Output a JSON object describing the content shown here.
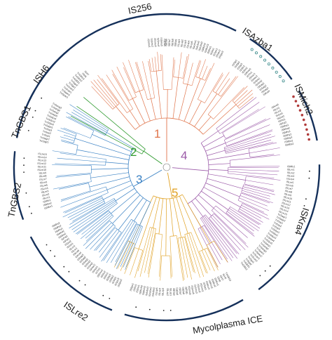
{
  "families": [
    {
      "label": "IS256"
    },
    {
      "label": "ISAzba1"
    },
    {
      "label": "ISMich2"
    },
    {
      "label": "ISKra4"
    },
    {
      "label": "Mycolplasma ICE"
    },
    {
      "label": "ISLre2"
    },
    {
      "label": "TnGBS2"
    },
    {
      "label": "TnGBS1"
    },
    {
      "label": "ISH6"
    }
  ],
  "clades": [
    {
      "number": "1",
      "color": "#e0744a"
    },
    {
      "number": "2",
      "color": "#2e9a2e"
    },
    {
      "number": "3",
      "color": "#3b82c4"
    },
    {
      "number": "4",
      "color": "#9b5aa8"
    },
    {
      "number": "5",
      "color": "#e0a020"
    }
  ],
  "colors": {
    "arc": "#15305a",
    "open_marker": "#3a8a8a",
    "filled_marker": "#b03a3a",
    "dot_marker": "#222222"
  },
  "leaf_labels_sample": [
    "ISSmu1",
    "ISSmu2",
    "ISSmu3",
    "ISSmu4",
    "ISSmu5",
    "ISEfa5",
    "ISEfa6",
    "ISEfa7",
    "ISEfa8",
    "ISEfa9",
    "ISLsp1",
    "ISLsp2",
    "ISLsp3",
    "ISLsp4",
    "ISLsp5",
    "ISAzba1",
    "ISAzba2",
    "ISAzba3",
    "ISMich2",
    "ISMich3",
    "ISShs1",
    "ISSlu1",
    "ISSpu1",
    "ISSpu2",
    "ISSpu3",
    "ISStp1",
    "ISStp2",
    "ISStp3",
    "ISSlo1",
    "ISSlo2",
    "ISRma1",
    "ISThi1",
    "ISHoc1",
    "ISHoc2",
    "ISSeq1",
    "ISSeq2",
    "ISSag1",
    "ISSag2",
    "ISSag3",
    "ISKra4",
    "ISKra5",
    "ISLin1",
    "ISLin2",
    "ISGst1",
    "ISGst2",
    "ISPst1",
    "ISPst2",
    "ISMha1",
    "ISMha2",
    "ISMhy1",
    "ISMhy2",
    "ISMhy3",
    "ISMbo1",
    "ISMbo2",
    "ISMfe1",
    "ISLre1",
    "ISLre2",
    "ISLre3",
    "ISLre4",
    "ISLre5",
    "ISLre6",
    "ISLre7",
    "ISLre8",
    "ISLre9",
    "ISLre10",
    "ISLre11",
    "ISLre12",
    "ISLre13",
    "ISLre14",
    "ISLre15",
    "TnSagr1",
    "TnSagr2",
    "TnSsp1",
    "TnSsp2",
    "TnSsp3",
    "TnSdys1",
    "TnSdys2",
    "TnSdys3",
    "TnSdys4",
    "TnSdys5",
    "TnSang1",
    "TnSang2",
    "TnSang3",
    "TnSpas1",
    "TnSpas2",
    "TnScan1",
    "TnScan2",
    "TnSga1",
    "TnSga2",
    "TnGBS1",
    "TnGBS2",
    "TnGBS3",
    "ISH6",
    "ISH7",
    "ISH8",
    "ISMcu1",
    "ISMcu2",
    "ISMcu3",
    "ISMcu4",
    "ISSau1"
  ]
}
